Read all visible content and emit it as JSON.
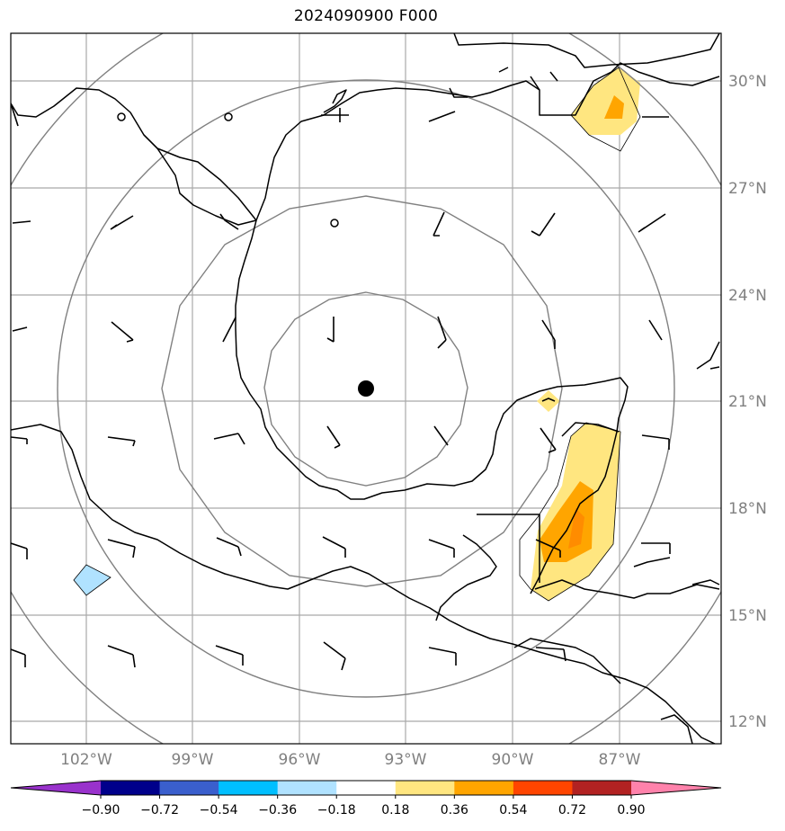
{
  "title": "2024090900 F000",
  "latitude_labels": [
    "30°N",
    "27°N",
    "24°N",
    "21°N",
    "18°N",
    "15°N",
    "12°N"
  ],
  "longitude_labels": [
    "102°W",
    "99°W",
    "96°W",
    "93°W",
    "90°W",
    "87°W"
  ],
  "colorbar": {
    "tick_labels": [
      "−0.90",
      "−0.72",
      "−0.54",
      "−0.36",
      "−0.18",
      "0.18",
      "0.36",
      "0.54",
      "0.72",
      "0.90"
    ],
    "colors": [
      "#9932cc",
      "#00008b",
      "#3a5fcd",
      "#00bfff",
      "#b0e2ff",
      "#ffffff",
      "#ffe680",
      "#ffa500",
      "#ff4500",
      "#b22222",
      "#ff82ab"
    ]
  },
  "map": {
    "center_marker": "storm-center",
    "range_rings": 4,
    "land_color": "#ffffff",
    "coastline_color": "#000000",
    "grid_color": "#a9a9a9",
    "ring_color": "#808080"
  }
}
